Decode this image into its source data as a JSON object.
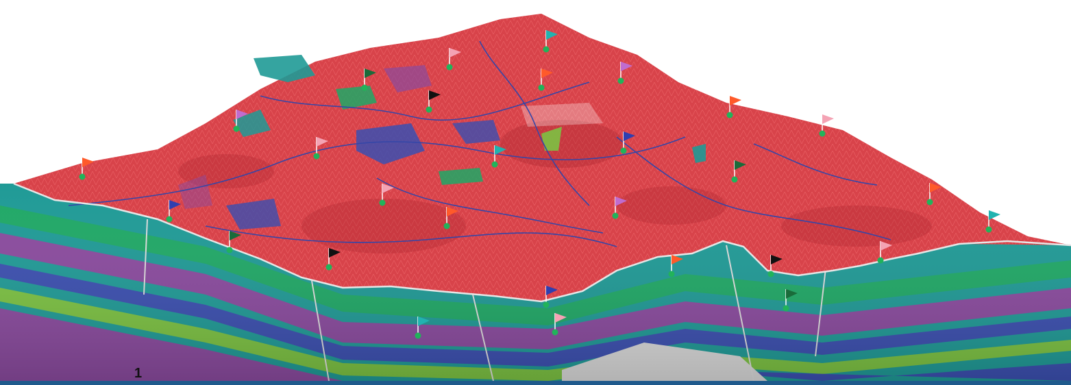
{
  "figure": {
    "number_label": "1",
    "colors": {
      "terrain_surface": "#d8434a",
      "terrain_shadow": "#a8262d",
      "strata_teal": "#1f9a96",
      "strata_green": "#1fa866",
      "strata_blue": "#3b4fb0",
      "strata_purple": "#8a4a9e",
      "strata_lime": "#7cc242",
      "horizon_line": "#e6e6e6",
      "river": "#3446a8",
      "footer_bar": "#1f5a8c"
    },
    "flag_colors": [
      "#ff5a2a",
      "#f4a3b4",
      "#21b3b0",
      "#1a6b3a",
      "#111111",
      "#c06ccf",
      "#2f3fb0"
    ]
  }
}
